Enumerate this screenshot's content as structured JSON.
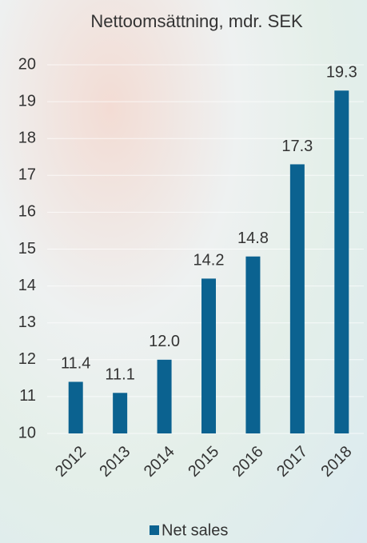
{
  "chart_data": {
    "type": "bar",
    "title": "Nettoomsättning, mdr. SEK",
    "categories": [
      "2012",
      "2013",
      "2014",
      "2015",
      "2016",
      "2017",
      "2018"
    ],
    "series": [
      {
        "name": "Net sales",
        "color": "#0b6290",
        "values": [
          11.4,
          11.1,
          12.0,
          14.2,
          14.8,
          17.3,
          19.3
        ],
        "value_labels": [
          "11.4",
          "11.1",
          "12.0",
          "14.2",
          "14.8",
          "17.3",
          "19.3"
        ]
      }
    ],
    "ylim": [
      10,
      20
    ],
    "yticks": [
      10,
      11,
      12,
      13,
      14,
      15,
      16,
      17,
      18,
      19,
      20
    ],
    "grid": true,
    "legend": "bottom"
  }
}
